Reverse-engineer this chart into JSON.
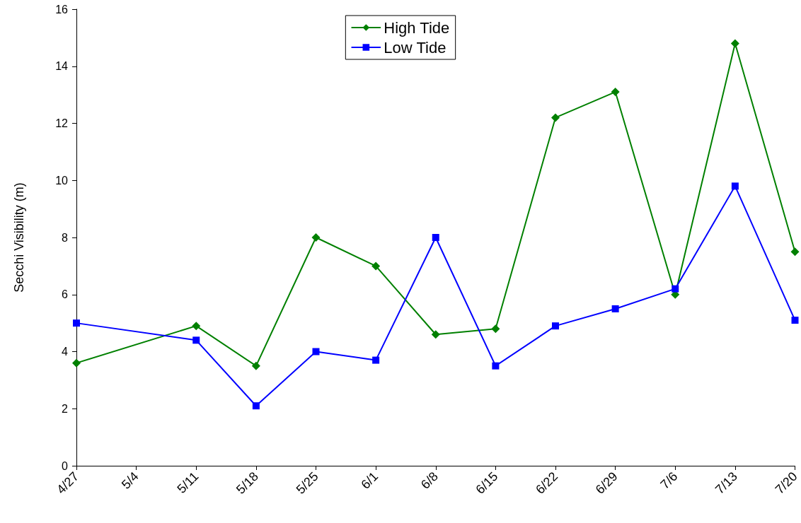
{
  "chart_data": {
    "type": "line",
    "ylabel": "Secchi Visibility (m)",
    "x": [
      "--04-27",
      "--05-11",
      "--05-18",
      "--05-25",
      "--06-01",
      "--06-08",
      "--06-15",
      "--06-22",
      "--06-29",
      "--07-06",
      "--07-13",
      "--07-20"
    ],
    "series": [
      {
        "name": "High Tide",
        "color": "#008000",
        "marker": "diamond",
        "values": [
          3.6,
          4.9,
          3.5,
          8.0,
          7.0,
          4.6,
          4.8,
          12.2,
          13.1,
          6.0,
          14.8,
          7.5
        ]
      },
      {
        "name": "Low Tide",
        "color": "#0000ff",
        "marker": "square",
        "values": [
          5.0,
          4.4,
          2.1,
          4.0,
          3.7,
          8.0,
          3.5,
          4.9,
          5.5,
          6.2,
          9.8,
          5.1
        ]
      }
    ],
    "xlim": [
      "--04-27",
      "--07-20"
    ],
    "xticks": [
      {
        "value": "--04-27",
        "label": "4/27"
      },
      {
        "value": "--05-04",
        "label": "5/4"
      },
      {
        "value": "--05-11",
        "label": "5/11"
      },
      {
        "value": "--05-18",
        "label": "5/18"
      },
      {
        "value": "--05-25",
        "label": "5/25"
      },
      {
        "value": "--06-01",
        "label": "6/1"
      },
      {
        "value": "--06-08",
        "label": "6/8"
      },
      {
        "value": "--06-15",
        "label": "6/15"
      },
      {
        "value": "--06-22",
        "label": "6/22"
      },
      {
        "value": "--06-29",
        "label": "6/29"
      },
      {
        "value": "--07-06",
        "label": "7/6"
      },
      {
        "value": "--07-13",
        "label": "7/13"
      },
      {
        "value": "--07-20",
        "label": "7/20"
      }
    ],
    "ylim": [
      0,
      16
    ],
    "yticks": [
      0,
      2,
      4,
      6,
      8,
      10,
      12,
      14,
      16
    ],
    "grid": false,
    "legend": "top",
    "line_style": "solid"
  }
}
